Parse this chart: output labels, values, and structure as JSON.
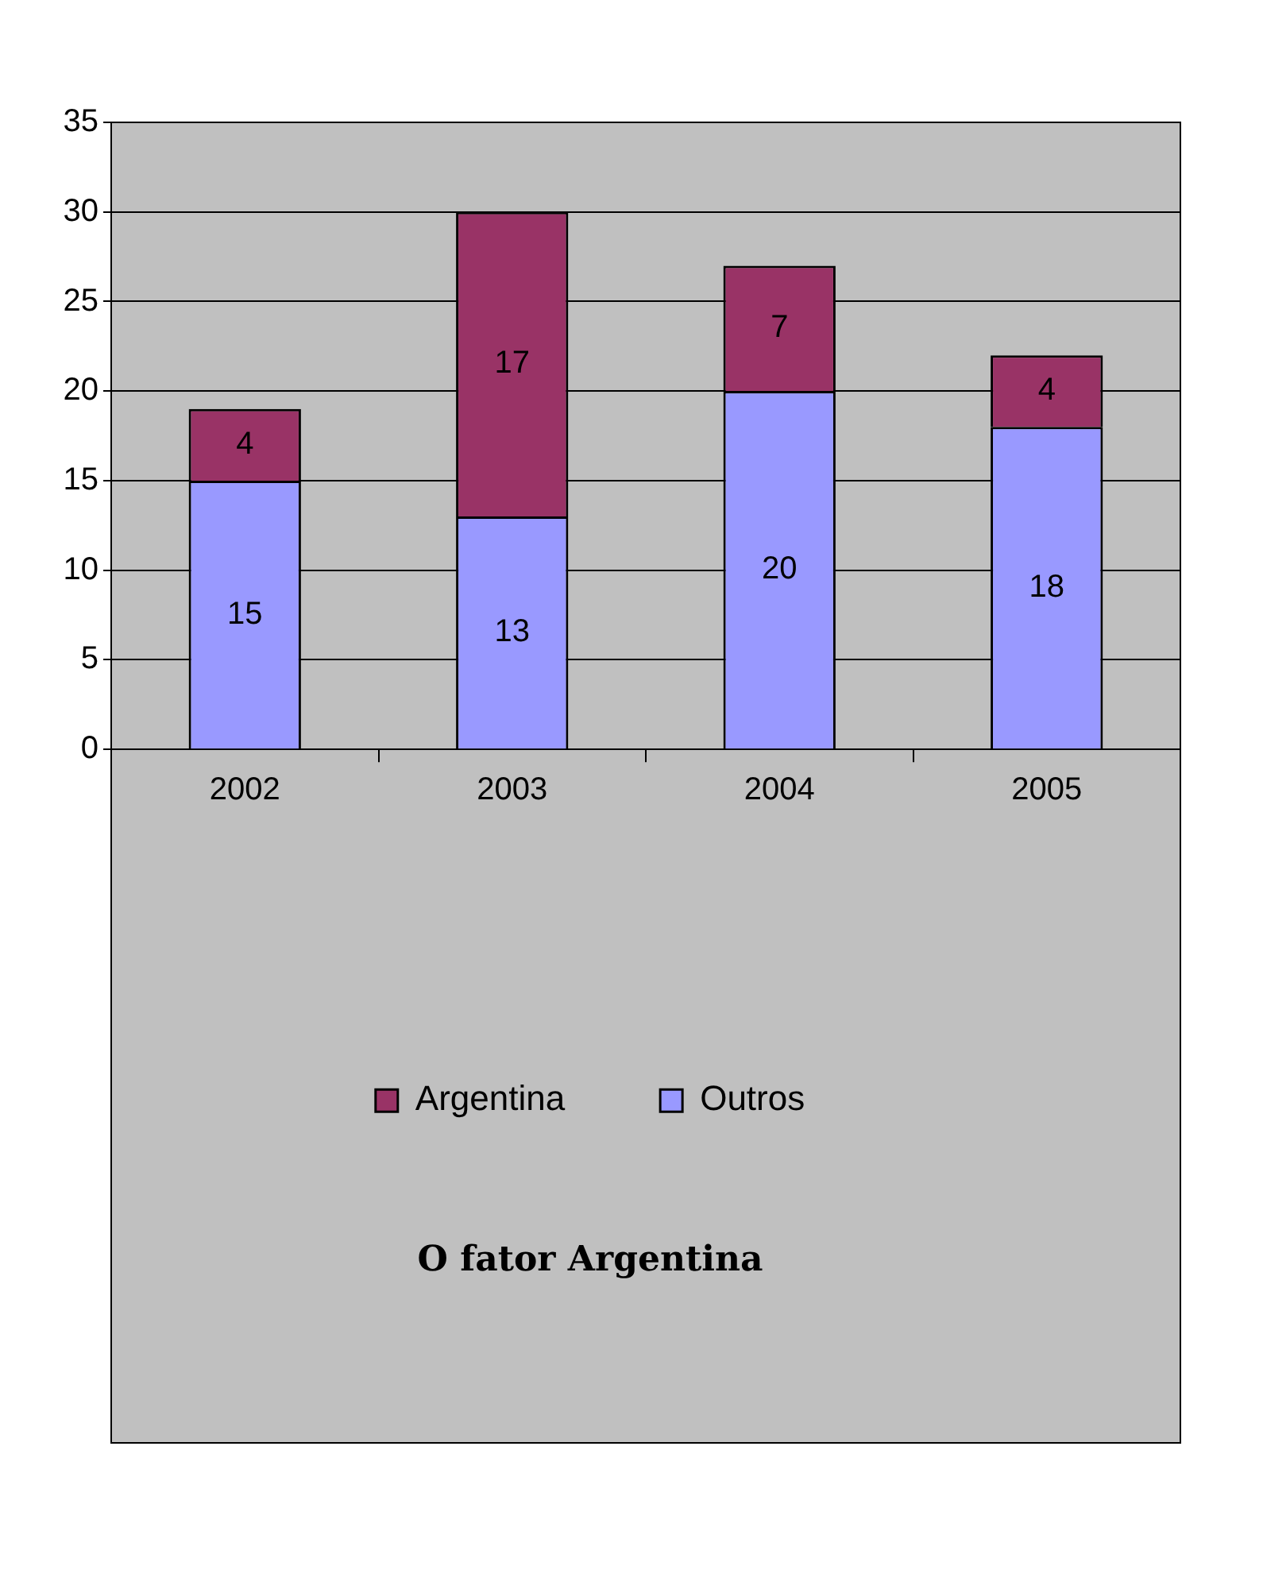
{
  "chart_data": {
    "type": "bar",
    "title": "O fator Argentina",
    "categories": [
      "2002",
      "2003",
      "2004",
      "2005"
    ],
    "stacked": true,
    "series": [
      {
        "name": "Outros",
        "color": "#9999ff",
        "values": [
          15,
          13,
          20,
          18
        ]
      },
      {
        "name": "Argentina",
        "color": "#993366",
        "values": [
          4,
          17,
          7,
          4
        ]
      }
    ],
    "ylim": [
      0,
      35
    ],
    "yticks": [
      0,
      5,
      10,
      15,
      20,
      25,
      30,
      35
    ],
    "grid": "y",
    "legend": "bottom",
    "data_labels": true
  }
}
